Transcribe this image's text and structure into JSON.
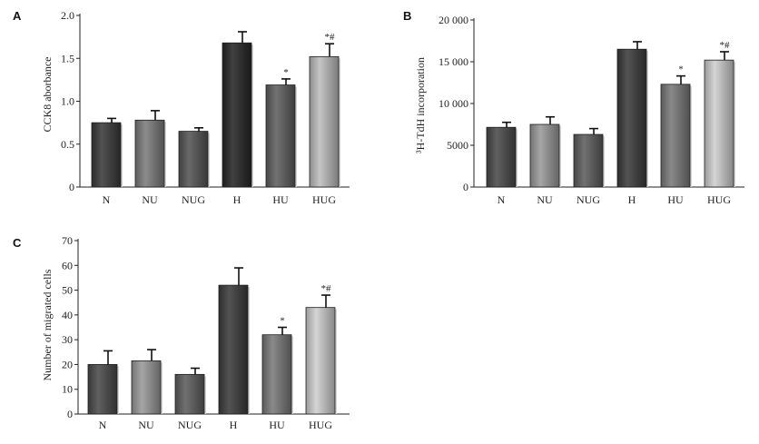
{
  "chart_data": [
    {
      "type": "bar",
      "panel_label": "A",
      "title": "",
      "xlabel": "",
      "ylabel": "CCK8 aborbance",
      "ylim": [
        0,
        2
      ],
      "yticks": [
        "0",
        "0.5",
        "1.0",
        "1.5",
        "2.0"
      ],
      "categories": [
        "N",
        "NU",
        "NUG",
        "H",
        "HU",
        "HUG"
      ],
      "values": [
        0.75,
        0.78,
        0.65,
        1.68,
        1.19,
        1.52
      ],
      "errors": [
        0.05,
        0.11,
        0.04,
        0.13,
        0.07,
        0.15
      ],
      "annotations": [
        "",
        "",
        "",
        "",
        "*",
        "*#"
      ],
      "colors": [
        "#3a3a3a",
        "#7c7c7c",
        "#555555",
        "#262626",
        "#5f5f5f",
        "#bdbdbd"
      ]
    },
    {
      "type": "bar",
      "panel_label": "B",
      "title": "",
      "xlabel": "",
      "ylabel": "³H-TdH incorporation",
      "ylim": [
        0,
        20000
      ],
      "yticks": [
        "0",
        "5000",
        "10 000",
        "15 000",
        "20 000"
      ],
      "categories": [
        "N",
        "NU",
        "NUG",
        "H",
        "HU",
        "HUG"
      ],
      "values": [
        7150,
        7500,
        6300,
        16500,
        12300,
        15200
      ],
      "errors": [
        600,
        900,
        700,
        900,
        1000,
        1000
      ],
      "annotations": [
        "",
        "",
        "",
        "",
        "*",
        "*#"
      ],
      "colors": [
        "#4a4a4a",
        "#9a9a9a",
        "#5e5e5e",
        "#3c3c3c",
        "#7a7a7a",
        "#cfcfcf"
      ]
    },
    {
      "type": "bar",
      "panel_label": "C",
      "title": "",
      "xlabel": "",
      "ylabel": "Number of migrated cells",
      "ylim": [
        0,
        70
      ],
      "yticks": [
        "0",
        "10",
        "20",
        "30",
        "40",
        "50",
        "60",
        "70"
      ],
      "categories": [
        "N",
        "NU",
        "NUG",
        "H",
        "HU",
        "HUG"
      ],
      "values": [
        20,
        21.5,
        16,
        52,
        32,
        43
      ],
      "errors": [
        5.5,
        4.5,
        2.5,
        7,
        3,
        5
      ],
      "annotations": [
        "",
        "",
        "",
        "",
        "*",
        "*#"
      ],
      "colors": [
        "#4a4a4a",
        "#9a9a9a",
        "#5e5e5e",
        "#3c3c3c",
        "#7a7a7a",
        "#cfcfcf"
      ]
    }
  ]
}
